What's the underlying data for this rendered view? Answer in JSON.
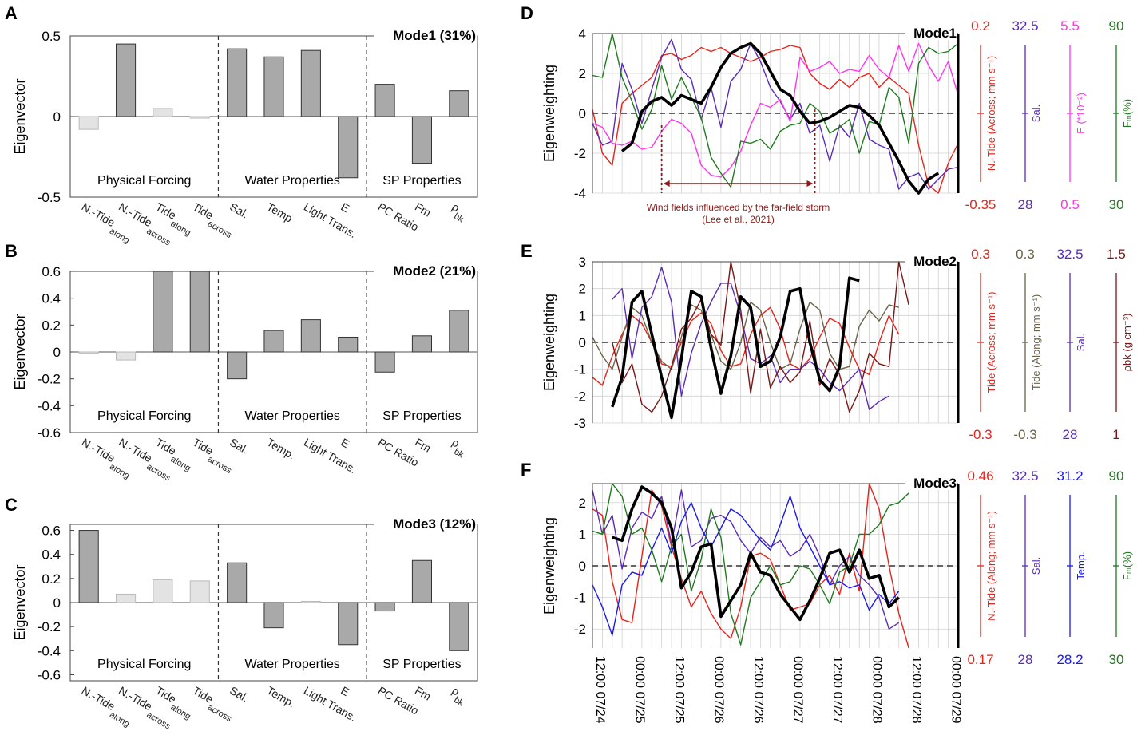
{
  "panels_left": [
    {
      "letter": "A",
      "title": "Mode1 (31%)",
      "ylabel": "Eigenvector",
      "yticks": [
        "0.5",
        "0",
        "-0.5"
      ],
      "ytick_values": [
        0.5,
        0,
        -0.5
      ],
      "ylim": [
        -0.5,
        0.5
      ],
      "values": [
        -0.08,
        0.45,
        0.05,
        -0.01,
        0.42,
        0.37,
        0.41,
        -0.38,
        0.2,
        -0.29,
        0.16
      ],
      "highlight": [
        false,
        true,
        false,
        false,
        true,
        true,
        true,
        true,
        true,
        true,
        true
      ],
      "groups": [
        "Physical Forcing",
        "Water Properties",
        "SP Properties"
      ]
    },
    {
      "letter": "B",
      "title": "Mode2 (21%)",
      "ylabel": "Eigenvector",
      "yticks": [
        "0.6",
        "0.4",
        "0.2",
        "0",
        "-0.2",
        "-0.4",
        "-0.6"
      ],
      "ytick_values": [
        0.6,
        0.4,
        0.2,
        0,
        -0.2,
        -0.4,
        -0.6
      ],
      "ylim": [
        -0.6,
        0.6
      ],
      "values": [
        -0.01,
        -0.06,
        0.6,
        0.6,
        -0.2,
        0.16,
        0.24,
        0.11,
        -0.15,
        0.12,
        0.31
      ],
      "highlight": [
        false,
        false,
        true,
        true,
        true,
        true,
        true,
        true,
        true,
        true,
        true
      ],
      "groups": [
        "Physical Forcing",
        "Water Properties",
        "SP Properties"
      ]
    },
    {
      "letter": "C",
      "title": "Mode3 (12%)",
      "ylabel": "Eigenvector",
      "yticks": [
        "0.6",
        "0.4",
        "0.2",
        "0",
        "-0.2",
        "-0.4",
        "-0.6"
      ],
      "ytick_values": [
        0.6,
        0.4,
        0.2,
        0,
        -0.2,
        -0.4,
        -0.6
      ],
      "ylim": [
        -0.65,
        0.65
      ],
      "values": [
        0.6,
        0.07,
        0.19,
        0.18,
        0.33,
        -0.21,
        0.01,
        -0.35,
        -0.07,
        0.35,
        -0.4
      ],
      "highlight": [
        true,
        false,
        false,
        false,
        true,
        true,
        false,
        true,
        true,
        true,
        true
      ],
      "groups": [
        "Physical Forcing",
        "Water Properties",
        "SP Properties"
      ]
    }
  ],
  "categories": [
    {
      "main": "N.-Tide",
      "sub": "along"
    },
    {
      "main": "N.-Tide",
      "sub": "across"
    },
    {
      "main": "Tide",
      "sub": "along"
    },
    {
      "main": "Tide",
      "sub": "across"
    },
    {
      "main": "Sal.",
      "sub": ""
    },
    {
      "main": "Temp.",
      "sub": ""
    },
    {
      "main": "Light Trans.",
      "sub": ""
    },
    {
      "main": "E",
      "sub": ""
    },
    {
      "main": "PC Ratio",
      "sub": ""
    },
    {
      "main": "Fm",
      "sub": ""
    },
    {
      "main": "ρ",
      "sub": "bk"
    }
  ],
  "panels_right": [
    {
      "letter": "D",
      "title": "Mode1",
      "ylabel": "Eigenweighting",
      "yticks": [
        "4",
        "2",
        "0",
        "-2",
        "-4"
      ],
      "ytick_values": [
        4,
        2,
        0,
        -2,
        -4
      ],
      "ylim": [
        -4,
        4
      ],
      "annotation_line1": "Wind fields influenced by the far-field storm",
      "annotation_line2": "(Lee et al., 2021)",
      "scales": [
        {
          "top": "0.2",
          "bottom": "-0.35",
          "label": "N.-Tide (Across; mm s⁻¹)",
          "color": "#e8231a"
        },
        {
          "top": "32.5",
          "bottom": "28",
          "label": "Sal.",
          "color": "#5b2bb5"
        },
        {
          "top": "5.5",
          "bottom": "0.5",
          "label": "E (*10⁻²)",
          "color": "#ff33ee"
        },
        {
          "top": "90",
          "bottom": "30",
          "label": "Fₘ(%)",
          "color": "#1e7a1e"
        }
      ],
      "series": [
        {
          "name": "N.-Tide (Across)",
          "color": "#e8231a",
          "width": 1.4,
          "start": 0,
          "values": [
            0.2,
            -2.0,
            -2.6,
            0.5,
            1.0,
            1.4,
            1.8,
            2.9,
            3.0,
            2.7,
            2.9,
            3.3,
            3.1,
            3.3,
            3.0,
            2.8,
            2.6,
            2.8,
            3.1,
            3.2,
            3.4,
            3.3,
            2.0,
            1.5,
            1.2,
            1.7,
            1.3,
            1.8,
            2.0,
            1.3,
            1.8,
            1.4,
            1.0,
            -1.6,
            -3.6,
            -4.0,
            -2.5,
            -1.5
          ]
        },
        {
          "name": "Sal.",
          "color": "#5b2bb5",
          "width": 1.4,
          "start": 0,
          "values": [
            -0.5,
            -1.6,
            -1.4,
            2.5,
            1.2,
            -0.5,
            1.2,
            2.8,
            3.7,
            2.2,
            1.7,
            -0.3,
            1.3,
            -0.7,
            1.6,
            2.2,
            3.5,
            2.6,
            1.3,
            0.6,
            -0.3,
            0.5,
            -1.0,
            -0.6,
            -2.4,
            -0.6,
            -1.2,
            0.5,
            -1.3,
            -1.6,
            -1.8,
            -3.8,
            -3.2,
            -3.0,
            -3.8,
            -3.3,
            -2.8,
            -2.7
          ]
        },
        {
          "name": "E",
          "color": "#ff33ee",
          "width": 1.4,
          "start": 0,
          "values": [
            -0.5,
            -0.7,
            -1.5,
            -1.6,
            -1.4,
            -1.8,
            -1.7,
            -0.9,
            -0.3,
            -0.5,
            -1.0,
            -2.6,
            -3.1,
            -3.2,
            -2.7,
            -1.9,
            -0.6,
            0.5,
            0.3,
            0.7,
            -0.4,
            2.8,
            2.1,
            2.3,
            2.6,
            2.0,
            2.2,
            2.1,
            2.9,
            2.2,
            1.8,
            3.4,
            2.1,
            3.5,
            2.4,
            1.6,
            2.6,
            0.9
          ]
        },
        {
          "name": "Fm",
          "color": "#1e7a1e",
          "width": 1.4,
          "start": 0,
          "values": [
            1.9,
            1.8,
            4.3,
            1.8,
            0.6,
            -0.8,
            0.2,
            2.4,
            0.7,
            1.8,
            0.8,
            -0.2,
            -2.2,
            -3.0,
            -3.7,
            -1.4,
            -1.5,
            -1.3,
            -1.8,
            -0.9,
            -0.6,
            -0.5,
            0.5,
            0.1,
            -1.0,
            -0.7,
            -0.3,
            -2.0,
            -0.4,
            -0.6,
            1.3,
            0.8,
            -1.5,
            2.5,
            3.3,
            3.0,
            3.1,
            3.5
          ]
        },
        {
          "name": "Mode1",
          "color": "#000000",
          "width": 3.6,
          "start": 3,
          "values": [
            -1.9,
            -1.5,
            0.1,
            0.6,
            0.8,
            0.4,
            0.9,
            0.7,
            0.5,
            1.3,
            2.3,
            3.0,
            3.3,
            3.5,
            3.0,
            2.1,
            1.2,
            0.9,
            0.1,
            -0.5,
            -0.4,
            -0.2,
            0.1,
            0.4,
            0.3,
            -0.1,
            -0.6,
            -1.5,
            -2.4,
            -3.4,
            -4.0,
            -3.3,
            -3.0
          ]
        }
      ]
    },
    {
      "letter": "E",
      "title": "Mode2",
      "ylabel": "Eigenweighting",
      "yticks": [
        "3",
        "2",
        "1",
        "0",
        "-1",
        "-2",
        "-3"
      ],
      "ytick_values": [
        3,
        2,
        1,
        0,
        -1,
        -2,
        -3
      ],
      "ylim": [
        -3,
        3
      ],
      "scales": [
        {
          "top": "0.3",
          "bottom": "-0.3",
          "label": "Tide (Across; mm s⁻¹)",
          "color": "#e8231a"
        },
        {
          "top": "0.3",
          "bottom": "-0.3",
          "label": "Tide (Along; mm s⁻¹)",
          "color": "#6b6448"
        },
        {
          "top": "32.5",
          "bottom": "28",
          "label": "Sal.",
          "color": "#5b2bb5"
        },
        {
          "top": "1.5",
          "bottom": "1",
          "label": "ρbk (g cm⁻³)",
          "color": "#7a1616"
        }
      ],
      "series": [
        {
          "name": "Tide (Across)",
          "color": "#e8231a",
          "width": 1.4,
          "start": 0,
          "values": [
            -1.3,
            -1.6,
            -0.5,
            0.3,
            1.0,
            0.7,
            0.0,
            -0.8,
            -0.9,
            0.0,
            0.8,
            1.1,
            0.7,
            -0.3,
            -0.9,
            -0.8,
            0.3,
            1.0,
            1.3,
            0.5,
            -0.8,
            -1.0,
            -0.6,
            0.2,
            0.9,
            0.7,
            -0.2,
            -1.0,
            -1.2,
            0.0,
            1.0,
            0.3
          ]
        },
        {
          "name": "Tide (Along)",
          "color": "#6b6448",
          "width": 1.4,
          "start": 0,
          "values": [
            0.2,
            -0.5,
            -1.0,
            0.2,
            1.3,
            1.0,
            0.0,
            -0.7,
            -1.0,
            0.2,
            1.4,
            1.2,
            0.3,
            -0.7,
            -1.0,
            0.0,
            1.5,
            1.2,
            0.0,
            -1.0,
            -0.8,
            0.5,
            1.5,
            1.2,
            -0.4,
            -1.0,
            -0.9,
            0.6,
            1.2,
            0.8,
            1.4,
            1.3
          ]
        },
        {
          "name": "Sal.",
          "color": "#5b2bb5",
          "width": 1.4,
          "start": 2,
          "values": [
            1.6,
            2.0,
            -0.6,
            1.3,
            1.7,
            2.8,
            1.5,
            -2.0,
            -0.4,
            0.7,
            1.5,
            2.2,
            2.2,
            1.0,
            -0.6,
            -0.8,
            -0.5,
            -1.5,
            -1.0,
            -1.0,
            -0.7,
            -1.0,
            -1.5,
            -1.8,
            -1.4,
            -1.0,
            -2.5,
            -2.2,
            -2.0
          ]
        },
        {
          "name": "ρbk",
          "color": "#7a1616",
          "width": 1.4,
          "start": 2,
          "values": [
            0.0,
            -1.5,
            -0.8,
            -2.3,
            -2.6,
            -2.0,
            -0.9,
            0.5,
            0.9,
            1.6,
            0.3,
            -0.1,
            3.0,
            1.2,
            -1.9,
            0.5,
            -1.7,
            -0.9,
            -1.5,
            -1.1,
            0.8,
            -1.6,
            -0.6,
            -1.2,
            -2.6,
            -1.8,
            -0.4,
            -0.8,
            -0.9,
            3.0,
            1.4
          ]
        },
        {
          "name": "Mode2",
          "color": "#000000",
          "width": 3.6,
          "start": 2,
          "values": [
            -2.4,
            -1.3,
            1.5,
            1.9,
            0.3,
            -1.3,
            -2.8,
            -0.6,
            1.9,
            1.7,
            -0.2,
            -1.9,
            -0.5,
            1.7,
            1.3,
            -0.9,
            -0.7,
            0.2,
            1.9,
            2.0,
            0.0,
            -1.4,
            -1.8,
            -0.9,
            2.4,
            2.3
          ]
        }
      ]
    },
    {
      "letter": "F",
      "title": "Mode3",
      "ylabel": "Eigenweighting",
      "yticks": [
        "2",
        "1",
        "0",
        "-1",
        "-2"
      ],
      "ytick_values": [
        2,
        1,
        0,
        -1,
        -2
      ],
      "ylim": [
        -2.6,
        2.6
      ],
      "scales": [
        {
          "top": "0.46",
          "bottom": "0.17",
          "label": "N.-Tide (Along; mm s⁻¹)",
          "color": "#e8231a"
        },
        {
          "top": "32.5",
          "bottom": "28",
          "label": "Sal.",
          "color": "#5b2bb5"
        },
        {
          "top": "31.2",
          "bottom": "28.2",
          "label": "Temp.",
          "color": "#1a1aee"
        },
        {
          "top": "90",
          "bottom": "30",
          "label": "Fₘ(%)",
          "color": "#1e7a1e"
        }
      ],
      "series": [
        {
          "name": "N.-Tide (Along)",
          "color": "#e8231a",
          "width": 1.4,
          "start": 0,
          "values": [
            1.8,
            1.6,
            -0.5,
            -1.7,
            -1.8,
            0.3,
            2.4,
            1.9,
            0.6,
            -0.4,
            -1.3,
            -0.8,
            -1.5,
            -2.0,
            -2.3,
            -1.3,
            0.3,
            0.4,
            0.2,
            -0.6,
            -1.4,
            -1.3,
            -1.2,
            -0.6,
            -0.3,
            -0.9,
            0.4,
            -0.8,
            2.6,
            1.8,
            0.0,
            -1.5,
            -2.6
          ]
        },
        {
          "name": "Sal.",
          "color": "#5b2bb5",
          "width": 1.4,
          "start": 0,
          "values": [
            2.4,
            1.0,
            1.6,
            -0.1,
            1.2,
            1.7,
            1.5,
            2.2,
            0.7,
            2.4,
            0.6,
            0.8,
            1.5,
            1.6,
            1.4,
            0.8,
            0.4,
            0.9,
            0.6,
            0.8,
            0.3,
            0.5,
            1.0,
            0.3,
            -0.6,
            0.0,
            0.3,
            -0.3,
            -0.6,
            -1.0,
            -2.0,
            -1.8
          ]
        },
        {
          "name": "Temp.",
          "color": "#1a1aee",
          "width": 1.4,
          "start": 0,
          "values": [
            -0.6,
            -1.3,
            -2.2,
            -0.6,
            -0.2,
            -0.3,
            0.5,
            1.2,
            0.4,
            1.4,
            2.0,
            1.2,
            0.6,
            1.2,
            1.8,
            1.6,
            1.2,
            0.8,
            0.5,
            1.3,
            2.2,
            1.2,
            0.6,
            0.0,
            -0.6,
            -0.5,
            -0.7,
            -0.6,
            -1.4,
            -0.9,
            -1.2,
            -0.8
          ]
        },
        {
          "name": "Fm",
          "color": "#1e7a1e",
          "width": 1.4,
          "start": 0,
          "values": [
            1.1,
            1.0,
            2.6,
            2.2,
            1.0,
            1.2,
            0.5,
            -0.5,
            0.6,
            1.0,
            -0.8,
            0.2,
            1.8,
            0.9,
            -1.5,
            -2.5,
            -1.0,
            -0.5,
            0.0,
            -0.6,
            -0.5,
            0.0,
            -0.1,
            -0.6,
            -1.2,
            -0.2,
            0.0,
            1.0,
            1.0,
            1.3,
            1.9,
            2.0,
            2.3
          ]
        },
        {
          "name": "Mode3",
          "color": "#000000",
          "width": 3.6,
          "start": 2,
          "values": [
            0.9,
            0.8,
            1.8,
            2.5,
            2.3,
            2.0,
            1.2,
            -0.7,
            -0.2,
            0.6,
            0.7,
            -1.6,
            -1.1,
            -0.6,
            0.4,
            -0.2,
            -0.3,
            -0.9,
            -1.3,
            -1.7,
            -1.1,
            -0.4,
            0.4,
            0.5,
            -0.2,
            0.5,
            -0.4,
            -0.3,
            -1.3,
            -1.0
          ]
        }
      ]
    }
  ],
  "dates": [
    "12:00 07/24",
    "00:00 07/25",
    "12:00 07/25",
    "00:00 07/26",
    "12:00 07/26",
    "00:00 07/27",
    "12:00 07/27",
    "00:00 07/28",
    "12:00 07/28",
    "00:00 07/29"
  ]
}
